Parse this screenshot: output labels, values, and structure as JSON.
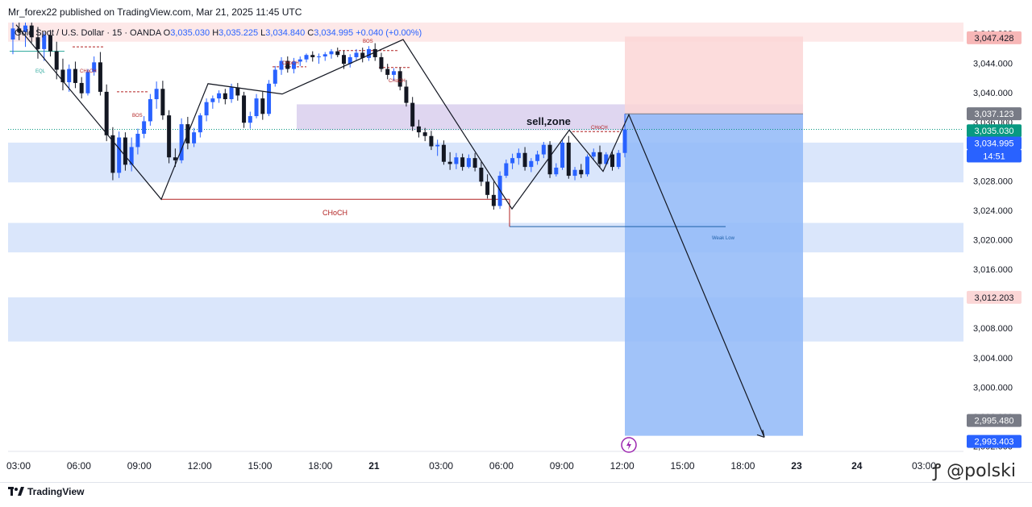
{
  "header": {
    "published": "Mr_forex22 published on TradingView.com, Mar 21, 2025 11:45 UTC",
    "symbol": "Gold Spot / U.S. Dollar · 15 · OANDA",
    "o_label": "O",
    "o": "3,035.030",
    "h_label": "H",
    "h": "3,035.225",
    "l_label": "L",
    "l": "3,034.840",
    "c_label": "C",
    "c": "3,034.995",
    "change": "+0.040 (+0.00%)"
  },
  "footer": {
    "brand": "TradingView",
    "watermark": "@polski"
  },
  "colors": {
    "up": "#2962ff",
    "down": "#131722",
    "sell_zone": "#d1c4e9",
    "tp_zone": "#90b8f8",
    "sl_zone": "#fbd6d6",
    "supply": "#fde2e2",
    "demand": "#d6e3fb",
    "current_price": "#089981"
  },
  "chart_data": {
    "type": "candlestick",
    "title": "",
    "y_axis": {
      "ticks": [
        "3,048.000",
        "3,044.000",
        "3,040.000",
        "3,036.000",
        "3,032.000",
        "3,028.000",
        "3,024.000",
        "3,020.000",
        "3,016.000",
        "3,012.000",
        "3,008.000",
        "3,004.000",
        "3,000.000",
        "2,996.000",
        "2,992.000"
      ],
      "ylim": [
        2991.5,
        3049.5
      ]
    },
    "x_axis": {
      "ticks": [
        "03:00",
        "06:00",
        "09:00",
        "12:00",
        "15:00",
        "18:00",
        "21",
        "03:00",
        "06:00",
        "09:00",
        "12:00",
        "15:00",
        "18:00",
        "23",
        "24",
        "03:00"
      ],
      "bold_ticks": [
        "21",
        "23",
        "24"
      ]
    },
    "price_labels": [
      {
        "value": "3,047.428",
        "bg": "#f7b7b7",
        "fg": "#131722"
      },
      {
        "value": "3,037.123",
        "bg": "#787b86",
        "fg": "#ffffff"
      },
      {
        "value": "3,035.030",
        "bg": "#089981",
        "fg": "#ffffff"
      },
      {
        "value": "3,034.995",
        "bg": "#2962ff",
        "fg": "#ffffff"
      },
      {
        "value": "14:51",
        "bg": "#2962ff",
        "fg": "#ffffff"
      },
      {
        "value": "3,012.203",
        "bg": "#fbd6d6",
        "fg": "#131722"
      },
      {
        "value": "2,995.480",
        "bg": "#787b86",
        "fg": "#ffffff"
      },
      {
        "value": "2,993.403",
        "bg": "#2962ff",
        "fg": "#ffffff"
      }
    ],
    "annotations": [
      "sell,zone",
      "CHoCH",
      "CHoCH",
      "CHoCH",
      "CHoCH",
      "CHoCH",
      "BOS",
      "BOS",
      "EQL",
      "Weak Low"
    ],
    "zones": {
      "sell_zone": [
        3034.9,
        3038.4
      ],
      "stop_zone": [
        3037.1,
        3047.6
      ],
      "target_zone": [
        2993.4,
        3037.1
      ],
      "supply_zone": [
        3046.9,
        3050.5
      ],
      "demand_zones": [
        [
          3027.8,
          3033.2
        ],
        [
          3018.3,
          3022.3
        ],
        [
          3006.2,
          3012.2
        ]
      ]
    },
    "series": [
      {
        "values": [
          [
            3047.2,
            3049.5,
            3045.2,
            3048.7
          ],
          [
            3048.7,
            3049.8,
            3047.1,
            3048.2
          ],
          [
            3048.2,
            3049.6,
            3046.2,
            3049.1
          ],
          [
            3049.1,
            3049.8,
            3046.8,
            3047.5
          ],
          [
            3047.5,
            3048.9,
            3044.6,
            3045.9
          ],
          [
            3045.9,
            3048.2,
            3044.3,
            3047.8
          ],
          [
            3047.8,
            3048.5,
            3044.9,
            3045.6
          ],
          [
            3045.6,
            3046.9,
            3041.8,
            3043.1
          ],
          [
            3043.1,
            3044.6,
            3040.3,
            3041.4
          ],
          [
            3041.4,
            3043.8,
            3040.1,
            3043.2
          ],
          [
            3043.2,
            3044.2,
            3040.6,
            3041.3
          ],
          [
            3041.3,
            3042.1,
            3039.2,
            3039.9
          ],
          [
            3039.9,
            3043.2,
            3039.6,
            3042.8
          ],
          [
            3042.8,
            3044.9,
            3042.3,
            3044.1
          ],
          [
            3044.1,
            3045.5,
            3039.6,
            3040.1
          ],
          [
            3040.1,
            3041.1,
            3033.4,
            3034.2
          ],
          [
            3034.2,
            3035.3,
            3028.1,
            3029.1
          ],
          [
            3029.1,
            3034.7,
            3028.4,
            3033.9
          ],
          [
            3033.9,
            3034.6,
            3029.4,
            3030.2
          ],
          [
            3030.2,
            3033.9,
            3029.3,
            3032.6
          ],
          [
            3032.6,
            3035.1,
            3031.6,
            3034.4
          ],
          [
            3034.4,
            3036.8,
            3033.8,
            3036.1
          ],
          [
            3036.1,
            3039.8,
            3035.5,
            3039.1
          ],
          [
            3039.1,
            3041.5,
            3037.8,
            3040.5
          ],
          [
            3040.5,
            3041.6,
            3036.3,
            3036.9
          ],
          [
            3036.9,
            3037.6,
            3030.4,
            3031.2
          ],
          [
            3031.2,
            3032.4,
            3029.9,
            3030.8
          ],
          [
            3030.8,
            3036.5,
            3030.4,
            3035.7
          ],
          [
            3035.7,
            3036.7,
            3032.3,
            3033.1
          ],
          [
            3033.1,
            3035.2,
            3032.6,
            3034.6
          ],
          [
            3034.6,
            3037.2,
            3033.9,
            3036.9
          ],
          [
            3036.9,
            3039.2,
            3036.1,
            3038.7
          ],
          [
            3038.7,
            3039.6,
            3037.8,
            3039.2
          ],
          [
            3039.2,
            3040.3,
            3038.6,
            3039.9
          ],
          [
            3039.9,
            3040.5,
            3038.4,
            3039.1
          ],
          [
            3039.1,
            3041.2,
            3038.6,
            3040.7
          ],
          [
            3040.7,
            3041.3,
            3038.9,
            3039.6
          ],
          [
            3039.6,
            3040.1,
            3035.2,
            3035.9
          ],
          [
            3035.9,
            3037.4,
            3035.1,
            3036.8
          ],
          [
            3036.8,
            3039.8,
            3036.5,
            3039.2
          ],
          [
            3039.2,
            3040.1,
            3036.3,
            3037.1
          ],
          [
            3037.1,
            3041.7,
            3036.8,
            3041.2
          ],
          [
            3041.2,
            3043.6,
            3040.8,
            3043.1
          ],
          [
            3043.1,
            3044.8,
            3042.4,
            3044.3
          ],
          [
            3044.3,
            3044.9,
            3042.7,
            3043.2
          ],
          [
            3043.2,
            3044.7,
            3042.6,
            3044.2
          ],
          [
            3044.2,
            3044.9,
            3043.6,
            3044.5
          ],
          [
            3044.5,
            3045.3,
            3044.1,
            3045.1
          ],
          [
            3045.1,
            3045.6,
            3044.2,
            3044.8
          ],
          [
            3044.8,
            3045.3,
            3043.9,
            3044.9
          ],
          [
            3044.9,
            3045.5,
            3044.3,
            3045.2
          ],
          [
            3045.2,
            3045.9,
            3044.6,
            3045.6
          ],
          [
            3045.6,
            3046.1,
            3044.8,
            3045.1
          ],
          [
            3045.1,
            3045.7,
            3043.2,
            3043.9
          ],
          [
            3043.9,
            3045.2,
            3043.4,
            3044.8
          ],
          [
            3044.8,
            3045.9,
            3044.3,
            3045.4
          ],
          [
            3045.4,
            3046.1,
            3044.1,
            3044.7
          ],
          [
            3044.7,
            3046.3,
            3044.3,
            3045.9
          ],
          [
            3045.9,
            3046.7,
            3044.3,
            3044.8
          ],
          [
            3044.8,
            3045.4,
            3042.8,
            3043.2
          ],
          [
            3043.2,
            3043.9,
            3041.8,
            3042.4
          ],
          [
            3042.4,
            3043.3,
            3041.6,
            3042.9
          ],
          [
            3042.9,
            3043.4,
            3040.3,
            3040.8
          ],
          [
            3040.8,
            3041.7,
            3038.1,
            3038.6
          ],
          [
            3038.6,
            3039.4,
            3034.8,
            3035.4
          ],
          [
            3035.4,
            3036.3,
            3033.9,
            3034.6
          ],
          [
            3034.6,
            3035.2,
            3033.4,
            3034.1
          ],
          [
            3034.1,
            3034.8,
            3032.2,
            3032.7
          ],
          [
            3032.7,
            3033.6,
            3031.4,
            3032.9
          ],
          [
            3032.9,
            3033.5,
            3030.2,
            3030.6
          ],
          [
            3030.6,
            3031.9,
            3029.5,
            3030.3
          ],
          [
            3030.3,
            3031.8,
            3029.6,
            3031.2
          ],
          [
            3031.2,
            3031.7,
            3029.4,
            3029.9
          ],
          [
            3029.9,
            3031.6,
            3029.7,
            3031.1
          ],
          [
            3031.1,
            3031.8,
            3029.3,
            3029.8
          ],
          [
            3029.8,
            3030.6,
            3027.3,
            3027.9
          ],
          [
            3027.9,
            3028.9,
            3025.6,
            3026.1
          ],
          [
            3026.1,
            3027.9,
            3024.1,
            3024.6
          ],
          [
            3024.6,
            3029.3,
            3024.2,
            3028.7
          ],
          [
            3028.7,
            3030.9,
            3028.4,
            3030.4
          ],
          [
            3030.4,
            3031.7,
            3029.6,
            3031.1
          ],
          [
            3031.1,
            3032.4,
            3030.2,
            3031.8
          ],
          [
            3031.8,
            3032.6,
            3029.4,
            3029.9
          ],
          [
            3029.9,
            3031.1,
            3029.2,
            3030.7
          ],
          [
            3030.7,
            3032.1,
            3030.2,
            3031.6
          ],
          [
            3031.6,
            3033.3,
            3031.1,
            3032.9
          ],
          [
            3032.9,
            3033.4,
            3028.4,
            3028.9
          ],
          [
            3028.9,
            3030.4,
            3028.6,
            3029.8
          ],
          [
            3029.8,
            3033.6,
            3029.5,
            3033.2
          ],
          [
            3033.2,
            3034.1,
            3028.3,
            3028.7
          ],
          [
            3028.7,
            3029.9,
            3028.1,
            3029.5
          ],
          [
            3029.5,
            3030.3,
            3028.4,
            3028.9
          ],
          [
            3028.9,
            3031.6,
            3028.6,
            3031.3
          ],
          [
            3031.3,
            3032.4,
            3030.8,
            3031.9
          ],
          [
            3031.9,
            3032.8,
            3029.8,
            3030.3
          ],
          [
            3030.3,
            3031.9,
            3030.1,
            3031.6
          ],
          [
            3031.6,
            3032.1,
            3029.4,
            3029.9
          ],
          [
            3029.9,
            3032.2,
            3029.6,
            3031.8
          ],
          [
            3031.8,
            3037.1,
            3031.2,
            3035.0
          ]
        ]
      }
    ]
  }
}
